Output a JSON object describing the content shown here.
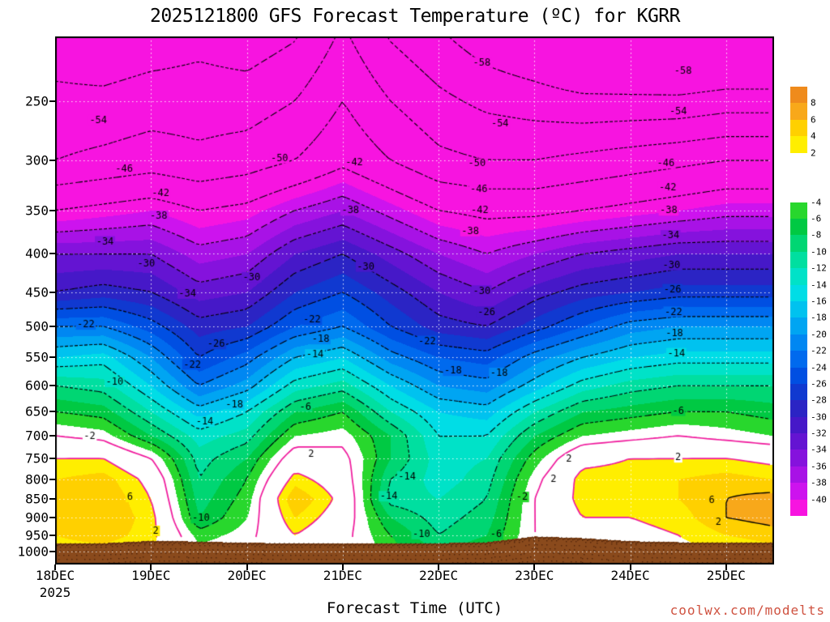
{
  "title": "2025121800 GFS Forecast Temperature (ºC) for KGRR",
  "x_axis_title": "Forecast Time (UTC)",
  "watermark": "coolwx.com/modelts",
  "chart_data": {
    "type": "heatmap",
    "title": "2025121800 GFS Forecast Temperature (ºC) for KGRR",
    "xlabel": "Forecast Time (UTC)",
    "ylabel": "",
    "station": "KGRR",
    "model_run": "2025121800",
    "x_tick_labels": [
      "18DEC",
      "19DEC",
      "20DEC",
      "21DEC",
      "22DEC",
      "23DEC",
      "24DEC",
      "25DEC"
    ],
    "x_tick_days": [
      0,
      1,
      2,
      3,
      4,
      5,
      6,
      7
    ],
    "year_label": "2025",
    "time_span_days": 7.5,
    "time_step_days": 0.5,
    "pressure_levels": [
      250,
      300,
      350,
      400,
      450,
      500,
      550,
      600,
      650,
      700,
      750,
      800,
      850,
      900,
      950,
      1000
    ],
    "y_tick_labels": [
      "250",
      "300",
      "350",
      "400",
      "450",
      "500",
      "550",
      "600",
      "650",
      "700",
      "750",
      "800",
      "850",
      "900",
      "950",
      "1000"
    ],
    "temperature_grid_c": [
      [
        -53,
        -53,
        -52,
        -52,
        -52,
        -50,
        -46,
        -50,
        -53,
        -55,
        -56,
        -57,
        -57,
        -57,
        -56,
        -56
      ],
      [
        -50,
        -49,
        -48,
        -49,
        -48,
        -46,
        -43,
        -46,
        -49,
        -50,
        -50,
        -49,
        -48,
        -47,
        -46,
        -46
      ],
      [
        -42,
        -41,
        -40,
        -42,
        -41,
        -38,
        -36,
        -39,
        -42,
        -43,
        -43,
        -42,
        -41,
        -40,
        -39,
        -39
      ],
      [
        -34,
        -34,
        -34,
        -37,
        -36,
        -32,
        -30,
        -33,
        -36,
        -38,
        -36,
        -34,
        -33,
        -32,
        -32,
        -32
      ],
      [
        -30,
        -29,
        -30,
        -33,
        -32,
        -28,
        -26,
        -29,
        -32,
        -34,
        -31,
        -29,
        -28,
        -27,
        -27,
        -27
      ],
      [
        -22,
        -22,
        -25,
        -29,
        -28,
        -24,
        -22,
        -26,
        -29,
        -30,
        -27,
        -24,
        -21,
        -20,
        -20,
        -20
      ],
      [
        -16,
        -15,
        -20,
        -26,
        -23,
        -18,
        -16,
        -21,
        -24,
        -25,
        -21,
        -18,
        -16,
        -15,
        -15,
        -15
      ],
      [
        -10,
        -11,
        -16,
        -22,
        -19,
        -13,
        -11,
        -16,
        -20,
        -21,
        -17,
        -13,
        -11,
        -10,
        -10,
        -10
      ],
      [
        -6,
        -7,
        -12,
        -17,
        -14,
        -8,
        -6,
        -12,
        -16,
        -17,
        -12,
        -8,
        -7,
        -6,
        -6,
        -7
      ],
      [
        -2,
        -3,
        -8,
        -13,
        -11,
        -4,
        -3,
        -8,
        -14,
        -14,
        -8,
        -4,
        -3,
        -2,
        -3,
        -4
      ],
      [
        2,
        2,
        -2,
        -11,
        -8,
        0,
        -1,
        -8,
        -13,
        -12,
        -5,
        1,
        2,
        2,
        2,
        1
      ],
      [
        4,
        5,
        1,
        -10,
        -6,
        3,
        0,
        -10,
        -13,
        -11,
        -3,
        3,
        3,
        4,
        5,
        4
      ],
      [
        5,
        6,
        2,
        -9,
        -5,
        6,
        1,
        -11,
        -12,
        -10,
        -2,
        3,
        3,
        4,
        6,
        7
      ],
      [
        5,
        6,
        3,
        -8,
        -4,
        4,
        0,
        -8,
        -11,
        -9,
        -2,
        2,
        2,
        3,
        6,
        7
      ],
      [
        4,
        5,
        3,
        -5,
        -3,
        2,
        -1,
        -6,
        -10,
        -8,
        -2,
        1,
        1,
        2,
        4,
        5
      ],
      [
        3,
        3,
        2,
        -3,
        -2,
        0,
        -1,
        -5,
        -8,
        -6,
        -1,
        0,
        1,
        1,
        2,
        3
      ]
    ],
    "contour_interval_c": 4,
    "contour_levels_dashed": [
      -58,
      -54,
      -50,
      -46,
      -42,
      -38,
      -34,
      -30,
      -26,
      -22,
      -18,
      -14,
      -10,
      -6
    ],
    "contour_levels_pink": [
      -2,
      2
    ],
    "contour_levels_solid": [
      6
    ],
    "contour_labels": [
      {
        "v": -54,
        "d": 0.45,
        "p": 265
      },
      {
        "v": -46,
        "d": 0.72,
        "p": 308
      },
      {
        "v": -42,
        "d": 1.1,
        "p": 332
      },
      {
        "v": -38,
        "d": 1.08,
        "p": 356
      },
      {
        "v": -34,
        "d": 0.52,
        "p": 385
      },
      {
        "v": -30,
        "d": 0.95,
        "p": 412
      },
      {
        "v": -22,
        "d": 0.32,
        "p": 497
      },
      {
        "v": -10,
        "d": 0.62,
        "p": 593
      },
      {
        "v": -2,
        "d": 0.36,
        "p": 700
      },
      {
        "v": 6,
        "d": 0.78,
        "p": 845
      },
      {
        "v": 2,
        "d": 1.05,
        "p": 938
      },
      {
        "v": -34,
        "d": 1.38,
        "p": 452
      },
      {
        "v": -30,
        "d": 2.05,
        "p": 430
      },
      {
        "v": -26,
        "d": 1.68,
        "p": 528
      },
      {
        "v": -22,
        "d": 1.43,
        "p": 562
      },
      {
        "v": -18,
        "d": 1.87,
        "p": 635
      },
      {
        "v": -14,
        "d": 1.56,
        "p": 670
      },
      {
        "v": -10,
        "d": 1.52,
        "p": 902
      },
      {
        "v": -50,
        "d": 2.34,
        "p": 298
      },
      {
        "v": -42,
        "d": 3.12,
        "p": 302
      },
      {
        "v": -38,
        "d": 3.08,
        "p": 350
      },
      {
        "v": -30,
        "d": 3.24,
        "p": 416
      },
      {
        "v": -22,
        "d": 2.68,
        "p": 490
      },
      {
        "v": -18,
        "d": 2.77,
        "p": 520
      },
      {
        "v": -14,
        "d": 2.71,
        "p": 545
      },
      {
        "v": -6,
        "d": 2.61,
        "p": 640
      },
      {
        "v": 2,
        "d": 2.67,
        "p": 740
      },
      {
        "v": -22,
        "d": 3.88,
        "p": 523
      },
      {
        "v": -18,
        "d": 4.15,
        "p": 573
      },
      {
        "v": -14,
        "d": 3.48,
        "p": 843
      },
      {
        "v": -14,
        "d": 3.67,
        "p": 793
      },
      {
        "v": -10,
        "d": 3.82,
        "p": 947
      },
      {
        "v": -58,
        "d": 4.45,
        "p": 222
      },
      {
        "v": -54,
        "d": 4.64,
        "p": 268
      },
      {
        "v": -50,
        "d": 4.4,
        "p": 303
      },
      {
        "v": -46,
        "d": 4.42,
        "p": 328
      },
      {
        "v": -42,
        "d": 4.43,
        "p": 350
      },
      {
        "v": -38,
        "d": 4.33,
        "p": 373
      },
      {
        "v": -30,
        "d": 4.45,
        "p": 448
      },
      {
        "v": -26,
        "d": 4.5,
        "p": 478
      },
      {
        "v": -18,
        "d": 4.63,
        "p": 577
      },
      {
        "v": -6,
        "d": 4.6,
        "p": 948
      },
      {
        "v": -2,
        "d": 4.87,
        "p": 845
      },
      {
        "v": 2,
        "d": 5.2,
        "p": 800
      },
      {
        "v": 2,
        "d": 5.36,
        "p": 752
      },
      {
        "v": -58,
        "d": 6.55,
        "p": 228
      },
      {
        "v": -54,
        "d": 6.5,
        "p": 258
      },
      {
        "v": -46,
        "d": 6.37,
        "p": 303
      },
      {
        "v": -42,
        "d": 6.39,
        "p": 326
      },
      {
        "v": -38,
        "d": 6.4,
        "p": 350
      },
      {
        "v": -34,
        "d": 6.42,
        "p": 378
      },
      {
        "v": -30,
        "d": 6.43,
        "p": 414
      },
      {
        "v": -26,
        "d": 6.44,
        "p": 446
      },
      {
        "v": -22,
        "d": 6.45,
        "p": 478
      },
      {
        "v": -18,
        "d": 6.46,
        "p": 510
      },
      {
        "v": -14,
        "d": 6.48,
        "p": 543
      },
      {
        "v": -6,
        "d": 6.5,
        "p": 648
      },
      {
        "v": 2,
        "d": 6.5,
        "p": 748
      },
      {
        "v": 6,
        "d": 6.85,
        "p": 852
      },
      {
        "v": 2,
        "d": 6.92,
        "p": 912
      }
    ],
    "terrain_top_pressure_hpa": [
      974,
      973,
      966,
      968,
      972,
      973,
      974,
      974,
      973,
      970,
      953,
      958,
      967,
      970,
      971,
      971
    ],
    "color_scale": {
      "thresholds_c": [
        8,
        6,
        4,
        2,
        -4,
        -6,
        -8,
        -10,
        -12,
        -14,
        -16,
        -18,
        -20,
        -22,
        -24,
        -26,
        -28,
        -30,
        -32,
        -34,
        -36,
        -38,
        -40
      ],
      "band_colors": [
        "#ef8b1c",
        "#f8a81a",
        "#ffd000",
        "#ffee00",
        "#ffffff",
        "#28d72d",
        "#00c943",
        "#00d673",
        "#00dfa0",
        "#00e2c8",
        "#00dde6",
        "#00c2ef",
        "#00a5f2",
        "#0087f2",
        "#006aee",
        "#004fe2",
        "#1039d0",
        "#2b24c4",
        "#4618c8",
        "#6414d2",
        "#8512dd",
        "#a812e6",
        "#cd13ee",
        "#f714e0"
      ],
      "colorbar_tick_labels": [
        "8",
        "6",
        "4",
        "2",
        "-4",
        "-6",
        "-8",
        "-10",
        "-12",
        "-14",
        "-16",
        "-18",
        "-20",
        "-22",
        "-24",
        "-26",
        "-28",
        "-30",
        "-32",
        "-34",
        "-36",
        "-38",
        "-40"
      ]
    },
    "colors": {
      "terrain": "#8a4a1c",
      "contour_pink": "#f0189c",
      "contour_black": "#000000",
      "grid_dots": "#ffffff",
      "watermark": "#cf5240",
      "axis": "#000000"
    }
  }
}
